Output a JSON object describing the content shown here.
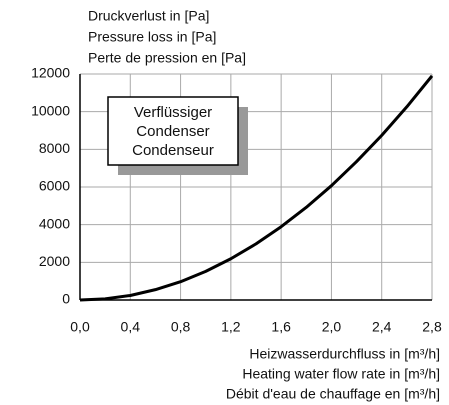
{
  "chart_data": {
    "type": "line",
    "y_label_lines": [
      "Druckverlust in [Pa]",
      "Pressure loss in [Pa]",
      "Perte de pression en [Pa]"
    ],
    "x_label_lines": [
      "Heizwasserdurchfluss in [m³/h]",
      "Heating water flow rate in [m³/h]",
      "Débit d'eau de chauffage en [m³/h]"
    ],
    "annotation_lines": [
      "Verflüssiger",
      "Condenser",
      "Condenseur"
    ],
    "x": [
      0,
      0.2,
      0.4,
      0.6,
      0.8,
      1.0,
      1.2,
      1.4,
      1.6,
      1.8,
      2.0,
      2.2,
      2.4,
      2.6,
      2.8
    ],
    "series": [
      {
        "color": "#000000",
        "values": [
          0,
          60,
          240,
          550,
          970,
          1520,
          2190,
          2980,
          3890,
          4920,
          6070,
          7350,
          8740,
          10260,
          11900
        ]
      }
    ],
    "xlim": [
      0,
      2.8
    ],
    "xticks": [
      {
        "value": 0,
        "label": "0,0"
      },
      {
        "value": 0.4,
        "label": "0,4"
      },
      {
        "value": 0.8,
        "label": "0,8"
      },
      {
        "value": 1.2,
        "label": "1,2"
      },
      {
        "value": 1.6,
        "label": "1,6"
      },
      {
        "value": 2.0,
        "label": "2,0"
      },
      {
        "value": 2.4,
        "label": "2,4"
      },
      {
        "value": 2.8,
        "label": "2,8"
      }
    ],
    "ylim": [
      0,
      12000
    ],
    "yticks": [
      0,
      2000,
      4000,
      6000,
      8000,
      10000,
      12000
    ],
    "grid": true
  }
}
